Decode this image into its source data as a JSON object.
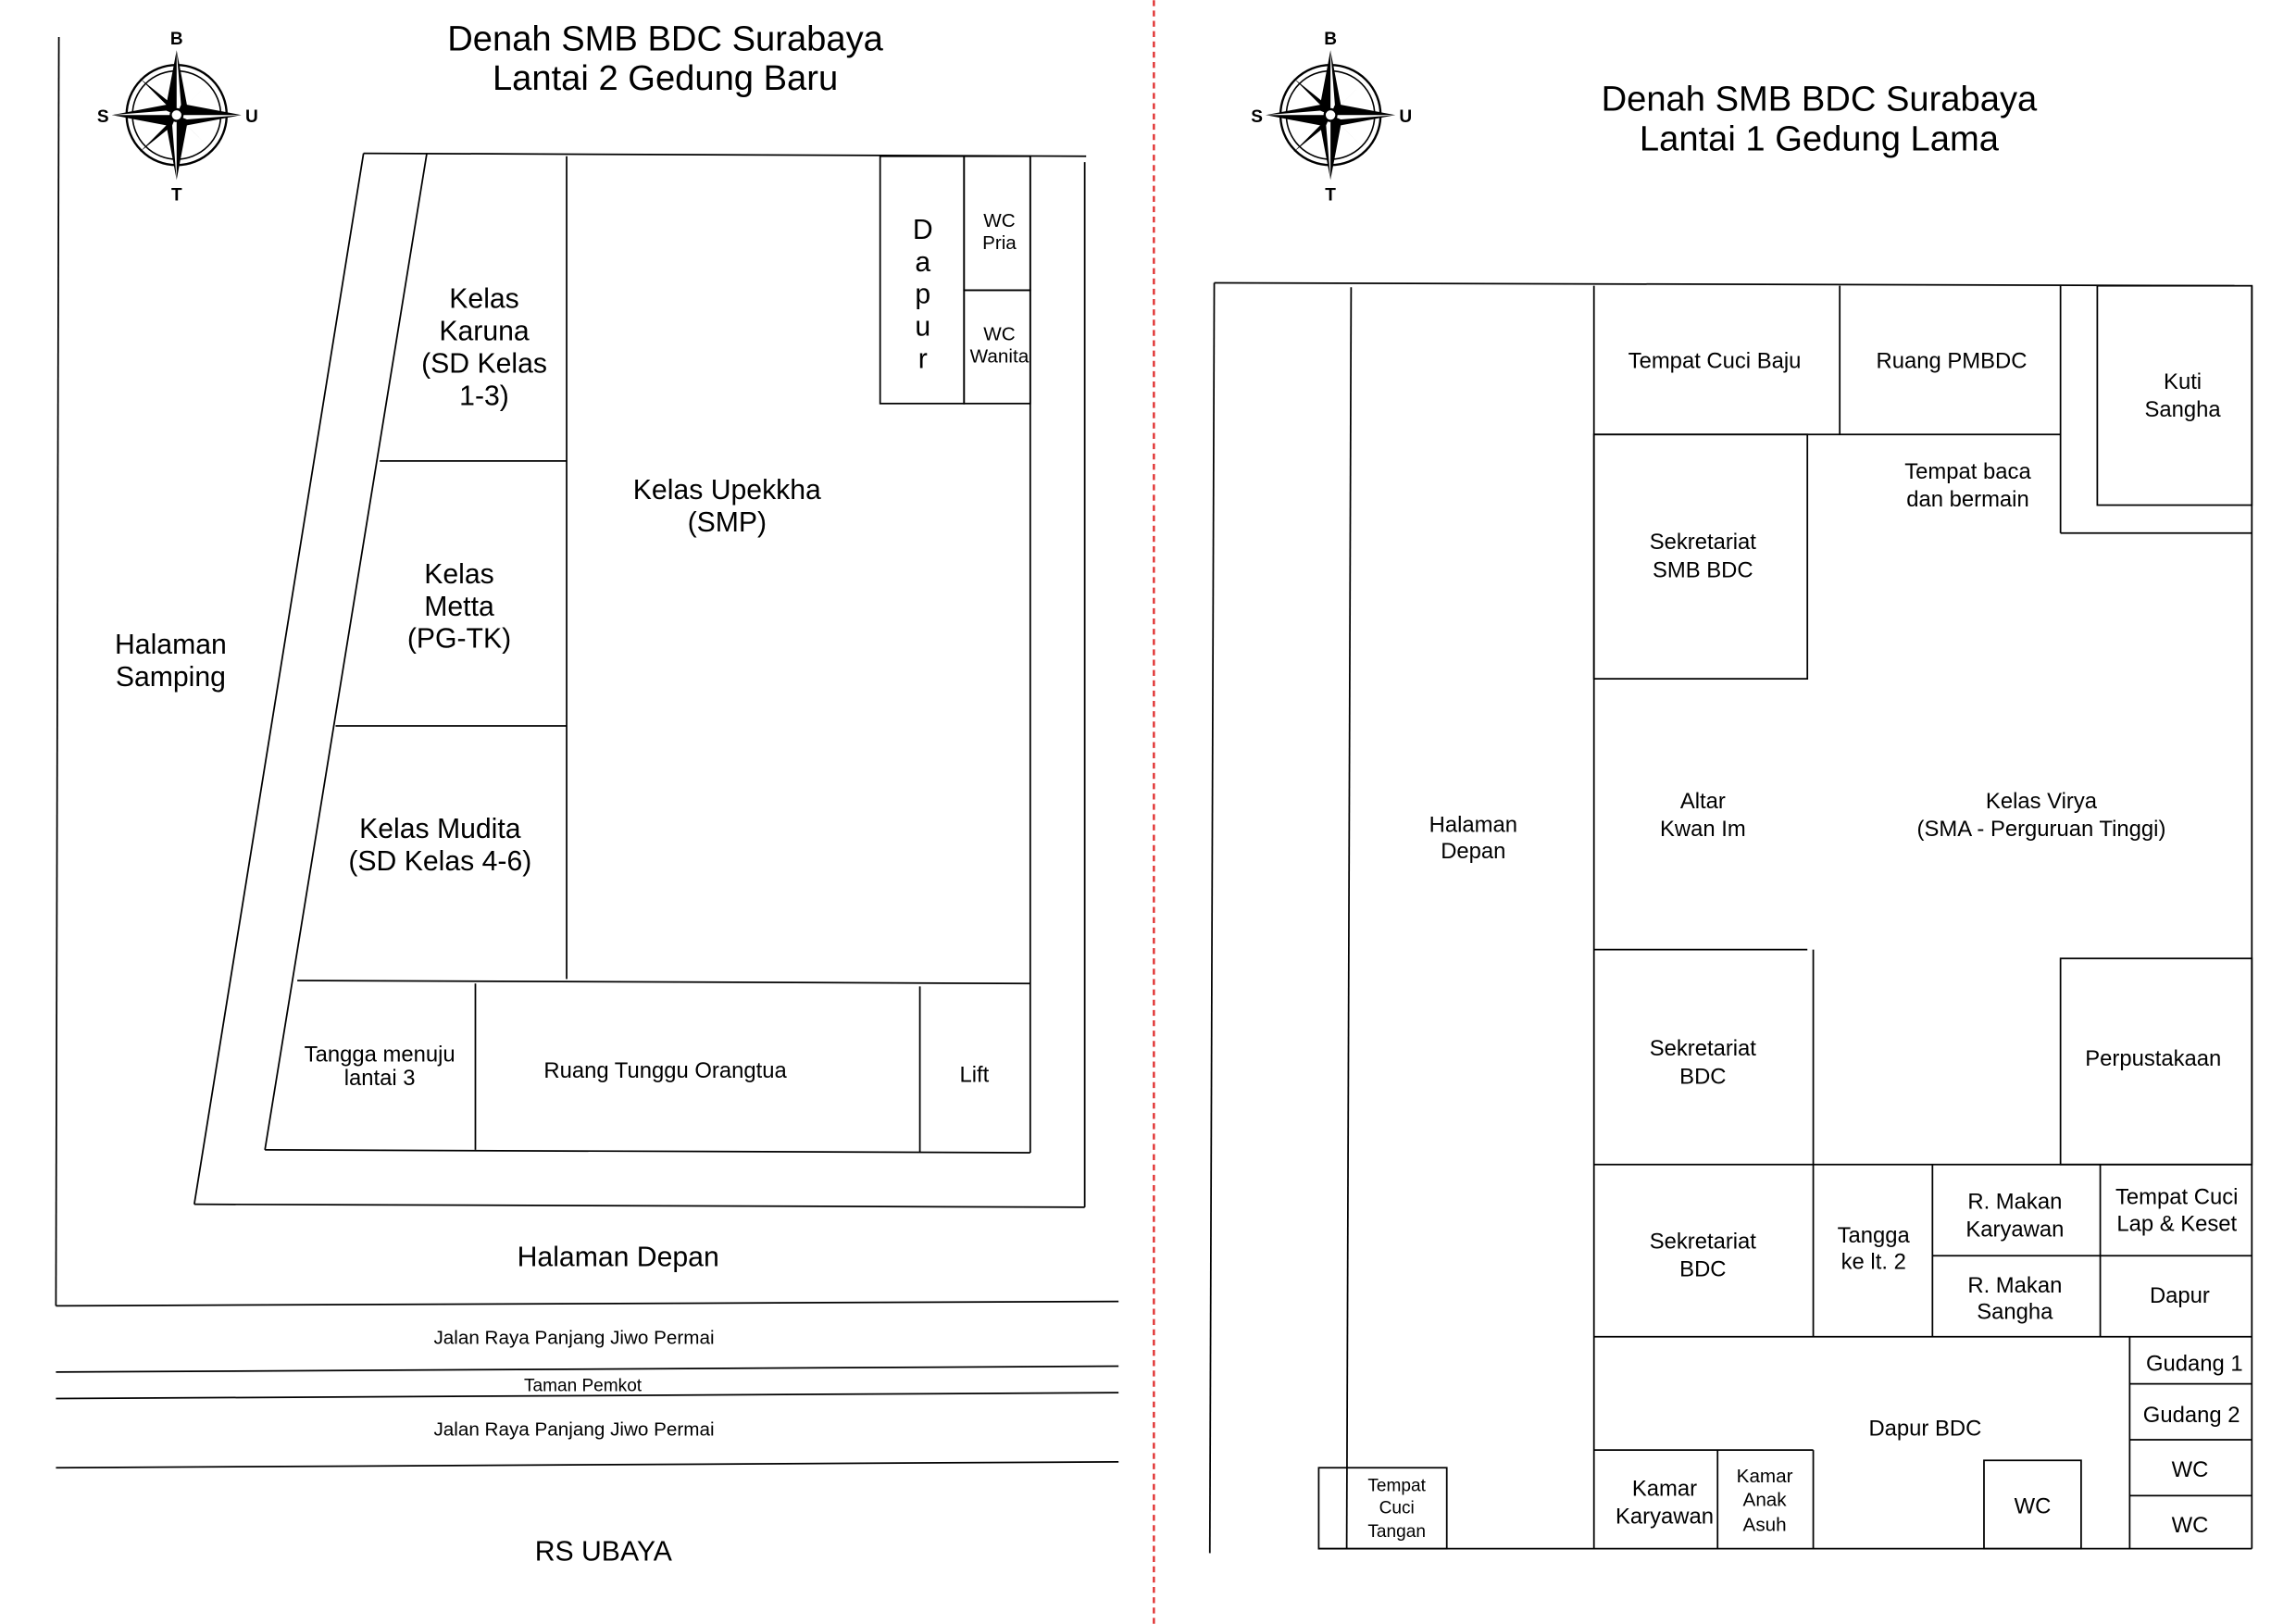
{
  "left_plan": {
    "title_line1": "Denah SMB BDC Surabaya",
    "title_line2": "Lantai 2 Gedung Baru",
    "compass": {
      "north": "B",
      "south": "T",
      "west": "S",
      "east": "U"
    },
    "rooms": {
      "karuna": [
        "Kelas",
        "Karuna",
        "(SD Kelas",
        "1-3)"
      ],
      "metta": [
        "Kelas",
        "Metta",
        "(PG-TK)"
      ],
      "mudita": [
        "Kelas Mudita",
        "(SD Kelas 4-6)"
      ],
      "upekkha": [
        "Kelas Upekkha",
        "(SMP)"
      ],
      "dapur": [
        "D",
        "a",
        "p",
        "u",
        "r"
      ],
      "wc_pria": [
        "WC",
        "Pria"
      ],
      "wc_wanita": [
        "WC",
        "Wanita"
      ],
      "tangga": [
        "Tangga menuju",
        "lantai 3"
      ],
      "ruang_tunggu": "Ruang Tunggu Orangtua",
      "lift": "Lift"
    },
    "halaman_samping": [
      "Halaman",
      "Samping"
    ],
    "halaman_depan": "Halaman Depan",
    "jalan_1": "Jalan Raya Panjang Jiwo Permai",
    "taman": "Taman Pemkot",
    "jalan_2": "Jalan Raya Panjang Jiwo Permai",
    "rs": "RS UBAYA"
  },
  "right_plan": {
    "title_line1": "Denah SMB BDC Surabaya",
    "title_line2": "Lantai 1 Gedung Lama",
    "compass": {
      "north": "B",
      "south": "T",
      "west": "S",
      "east": "U"
    },
    "halaman_depan": [
      "Halaman",
      "Depan"
    ],
    "rooms": {
      "cuci_baju": "Tempat Cuci Baju",
      "pmbdc": "Ruang PMBDC",
      "kuti": [
        "Kuti",
        "Sangha"
      ],
      "tempat_baca": [
        "Tempat baca",
        "dan bermain"
      ],
      "sekretariat_smb": [
        "Sekretariat",
        "SMB BDC"
      ],
      "altar": [
        "Altar",
        "Kwan Im"
      ],
      "virya": [
        "Kelas Virya",
        "(SMA - Perguruan Tinggi)"
      ],
      "sekretariat_bdc_1": [
        "Sekretariat",
        "BDC"
      ],
      "perpustakaan": "Perpustakaan",
      "sekretariat_bdc_2": [
        "Sekretariat",
        "BDC"
      ],
      "tangga": [
        "Tangga",
        "ke lt. 2"
      ],
      "makan_karyawan": [
        "R. Makan",
        "Karyawan"
      ],
      "cuci_lap": [
        "Tempat Cuci",
        "Lap & Keset"
      ],
      "makan_sangha": [
        "R. Makan",
        "Sangha"
      ],
      "dapur": "Dapur",
      "gudang_1": "Gudang 1",
      "gudang_2": "Gudang 2",
      "wc_1": "WC",
      "wc_2": "WC",
      "dapur_bdc": "Dapur BDC",
      "kamar_karyawan": [
        "Kamar",
        "Karyawan"
      ],
      "kamar_anak": [
        "Kamar",
        "Anak",
        "Asuh"
      ],
      "wc_3": "WC",
      "cuci_tangan": [
        "Tempat",
        "Cuci",
        "Tangan"
      ]
    }
  },
  "divider_color": "#e03030"
}
